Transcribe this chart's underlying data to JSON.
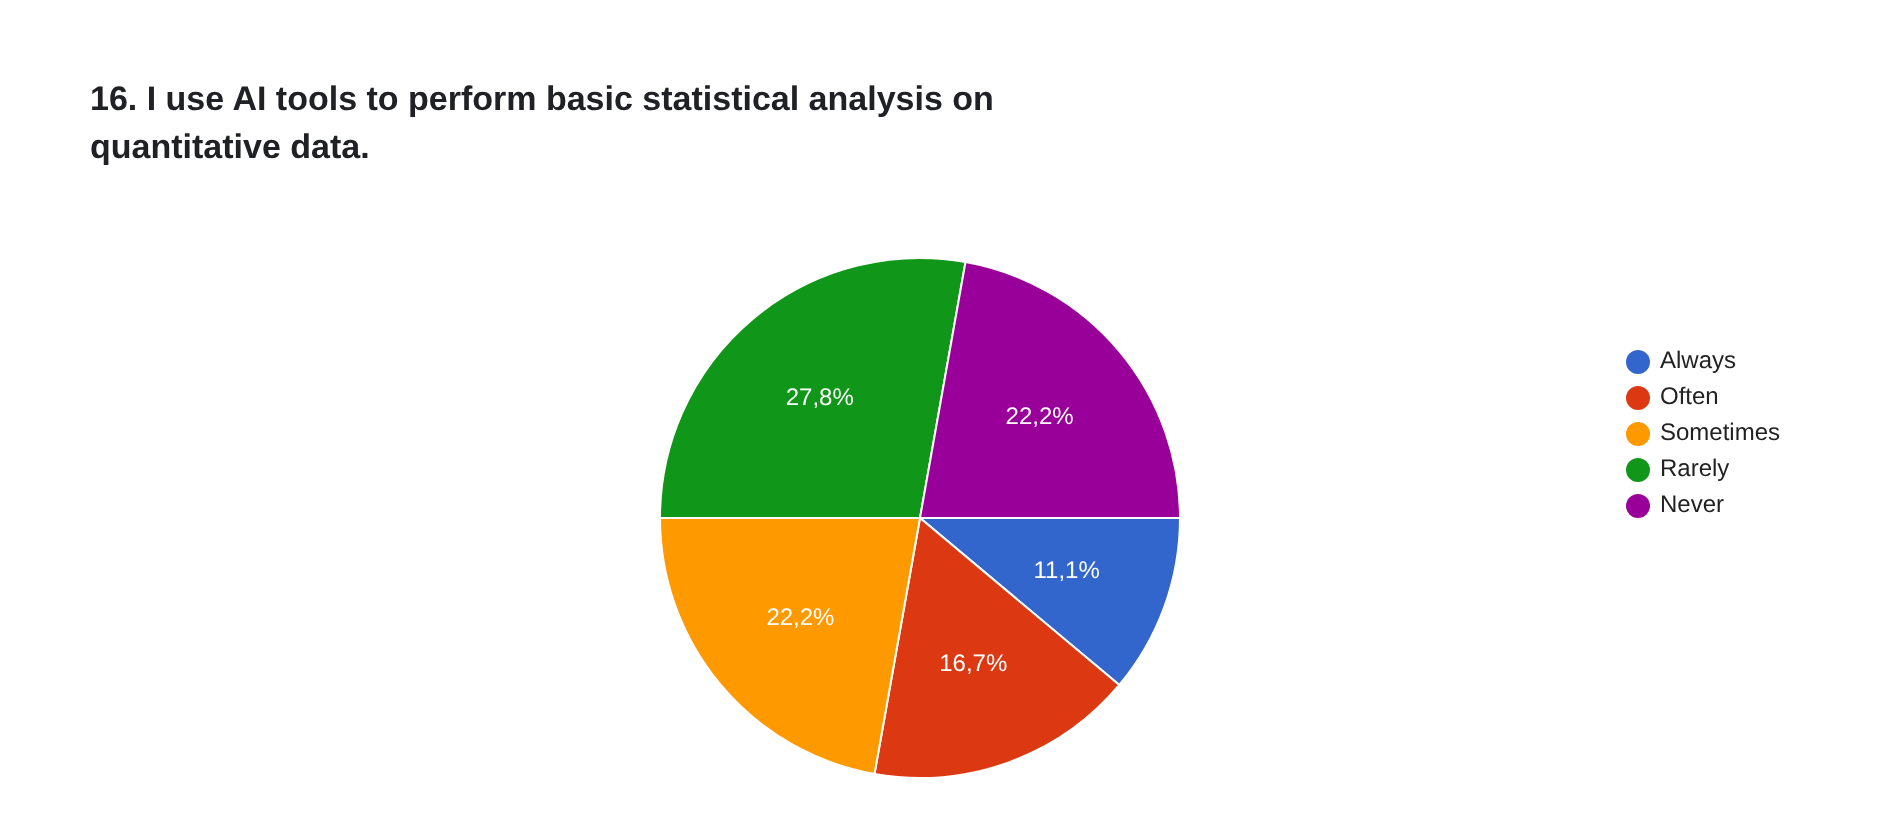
{
  "chart_data": {
    "type": "pie",
    "title": "16. I use AI tools to perform basic statistical analysis on quantitative data.",
    "categories": [
      "Always",
      "Often",
      "Sometimes",
      "Rarely",
      "Never"
    ],
    "values": [
      11.1,
      16.7,
      22.2,
      27.8,
      22.2
    ],
    "colors": [
      "#3366cc",
      "#dc3912",
      "#ff9900",
      "#109618",
      "#990099"
    ],
    "value_labels": [
      "11,1%",
      "16,7%",
      "22,2%",
      "27,8%",
      "22,2%"
    ],
    "legend": "right"
  }
}
